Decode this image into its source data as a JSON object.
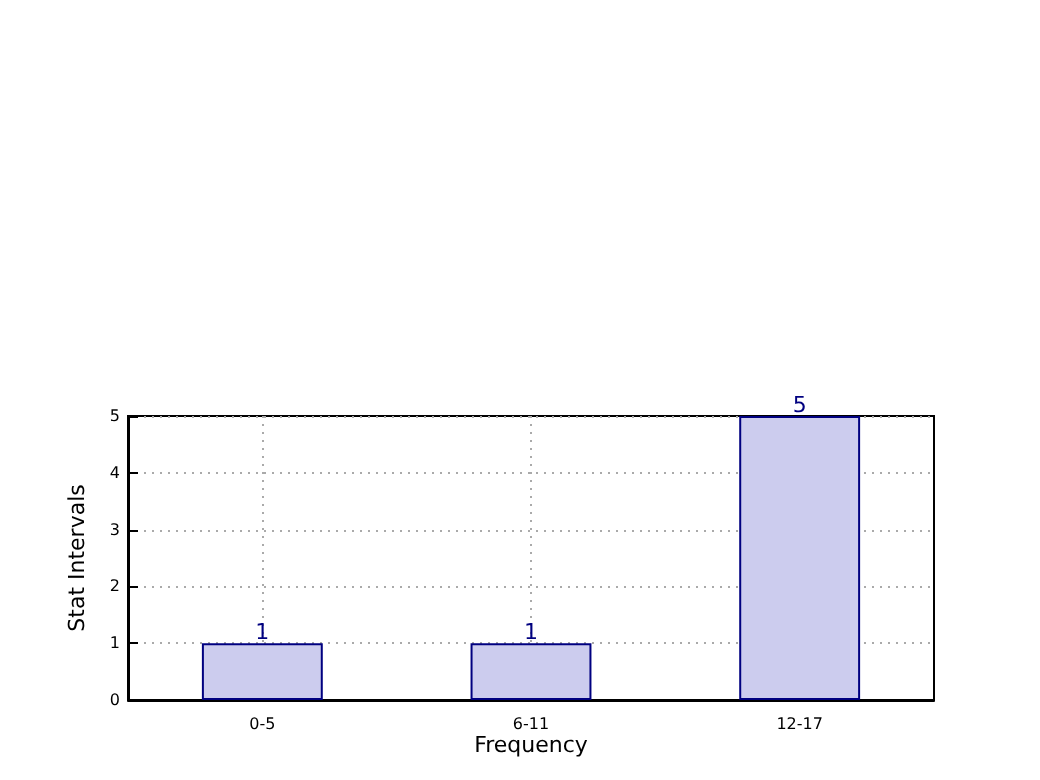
{
  "chart_data": {
    "type": "bar",
    "xlabel": "Frequency",
    "ylabel": "Stat Intervals",
    "categories": [
      "0-5",
      "6-11",
      "12-17"
    ],
    "series": [
      {
        "color": "#ccccee",
        "values": [
          1,
          1,
          5
        ]
      }
    ],
    "ylim": [
      0,
      5
    ],
    "yticks": [
      0,
      1,
      2,
      3,
      4,
      5
    ],
    "grid": true,
    "data_labels": true
  }
}
